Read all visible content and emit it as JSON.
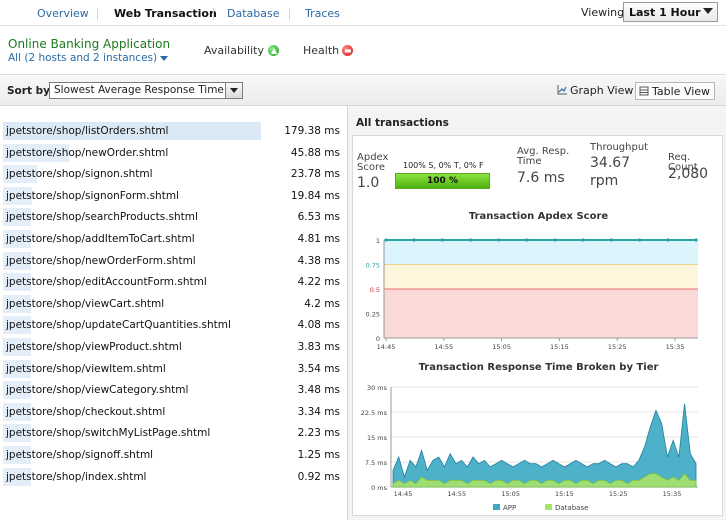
{
  "nav": {
    "tabs": [
      {
        "label": "Overview",
        "active": false
      },
      {
        "label": "Web Transaction",
        "active": true
      },
      {
        "label": "Database",
        "active": false
      },
      {
        "label": "Traces",
        "active": false
      }
    ],
    "viewing_label": "Viewing",
    "viewing_value": "Last 1 Hour"
  },
  "app": {
    "name": "Online Banking Application",
    "subtitle": "All (2 hosts and 2 instances)",
    "availability_label": "Availability",
    "availability_status": "up-arrow-green",
    "health_label": "Health",
    "health_status": "critical-red"
  },
  "sort": {
    "label": "Sort by.",
    "selected": "Slowest Average Response Time"
  },
  "views": {
    "graph_label": "Graph View",
    "table_label": "Table View",
    "active": "table"
  },
  "transactions": [
    {
      "name": "jpetstore/shop/listOrders.shtml",
      "time": "179.38 ms",
      "ms": 179.38
    },
    {
      "name": "jpetstore/shop/newOrder.shtml",
      "time": "45.88 ms",
      "ms": 45.88
    },
    {
      "name": "jpetstore/shop/signon.shtml",
      "time": "23.78 ms",
      "ms": 23.78
    },
    {
      "name": "jpetstore/shop/signonForm.shtml",
      "time": "19.84 ms",
      "ms": 19.84
    },
    {
      "name": "jpetstore/shop/searchProducts.shtml",
      "time": "6.53 ms",
      "ms": 6.53
    },
    {
      "name": "jpetstore/shop/addItemToCart.shtml",
      "time": "4.81 ms",
      "ms": 4.81
    },
    {
      "name": "jpetstore/shop/newOrderForm.shtml",
      "time": "4.38 ms",
      "ms": 4.38
    },
    {
      "name": "jpetstore/shop/editAccountForm.shtml",
      "time": "4.22 ms",
      "ms": 4.22
    },
    {
      "name": "jpetstore/shop/viewCart.shtml",
      "time": "4.2 ms",
      "ms": 4.2
    },
    {
      "name": "jpetstore/shop/updateCartQuantities.shtml",
      "time": "4.08 ms",
      "ms": 4.08
    },
    {
      "name": "jpetstore/shop/viewProduct.shtml",
      "time": "3.83 ms",
      "ms": 3.83
    },
    {
      "name": "jpetstore/shop/viewItem.shtml",
      "time": "3.54 ms",
      "ms": 3.54
    },
    {
      "name": "jpetstore/shop/viewCategory.shtml",
      "time": "3.48 ms",
      "ms": 3.48
    },
    {
      "name": "jpetstore/shop/checkout.shtml",
      "time": "3.34 ms",
      "ms": 3.34
    },
    {
      "name": "jpetstore/shop/switchMyListPage.shtml",
      "time": "2.23 ms",
      "ms": 2.23
    },
    {
      "name": "jpetstore/shop/signoff.shtml",
      "time": "1.25 ms",
      "ms": 1.25
    },
    {
      "name": "jpetstore/shop/index.shtml",
      "time": "0.92 ms",
      "ms": 0.92
    }
  ],
  "summary": {
    "title": "All transactions",
    "apdex_label_1": "Apdex",
    "apdex_label_2": "Score",
    "apdex_value": "1.0",
    "apdex_breakdown": "100% S, 0% T, 0% F",
    "apdex_bar_text": "100 %",
    "apdex_fraction": 1.0,
    "resp_label_1": "Avg. Resp.",
    "resp_label_2": "Time",
    "resp_value": "7.6 ms",
    "throughput_label": "Throughput",
    "throughput_value": "34.67",
    "throughput_unit": "rpm",
    "count_label": "Req. Count",
    "count_value": "2,080"
  },
  "chart_data": [
    {
      "type": "line",
      "title": "Transaction Apdex Score",
      "x_ticks": [
        "14:45",
        "14:55",
        "15:05",
        "15:15",
        "15:25",
        "15:35"
      ],
      "y_ticks": [
        "0",
        "0.25",
        "0.5",
        "0.75",
        "1"
      ],
      "ylim": [
        0,
        1
      ],
      "zones": [
        {
          "from": 0,
          "to": 0.5,
          "color": "#fbd9d9"
        },
        {
          "from": 0.5,
          "to": 0.75,
          "color": "#fdf6dc"
        },
        {
          "from": 0.75,
          "to": 1,
          "color": "#dcf4fb"
        }
      ],
      "series": [
        {
          "color": "#2aa3a3",
          "x": [
            "14:45",
            "14:50",
            "14:55",
            "15:00",
            "15:05",
            "15:10",
            "15:15",
            "15:20",
            "15:25",
            "15:30",
            "15:35",
            "15:40"
          ],
          "values": [
            1,
            1,
            1,
            1,
            1,
            1,
            1,
            1,
            1,
            1,
            1,
            1
          ]
        }
      ]
    },
    {
      "type": "area",
      "title": "Transaction Response Time Broken by Tier",
      "x_ticks": [
        "14:45",
        "14:55",
        "15:05",
        "15:15",
        "15:25",
        "15:35"
      ],
      "y_ticks": [
        "0 ms",
        "7.5 ms",
        "15 ms",
        "22.5 ms",
        "30 ms"
      ],
      "ylim": [
        0,
        30
      ],
      "series": [
        {
          "name": "APP",
          "color": "#3aa9c4",
          "values": [
            5,
            9,
            3,
            8,
            6,
            11,
            5,
            8,
            9,
            6,
            10,
            7,
            8,
            6,
            9,
            7,
            8,
            6,
            7,
            8,
            7,
            6,
            7,
            8,
            7,
            7,
            6,
            7,
            8,
            7,
            6,
            7,
            8,
            7,
            6,
            7,
            7,
            8,
            7,
            6,
            7,
            7,
            6,
            8,
            12,
            18,
            23,
            19,
            9,
            14,
            9,
            25,
            10,
            7
          ]
        },
        {
          "name": "Database",
          "color": "#a8e26b",
          "values": [
            1,
            2,
            1,
            2,
            1,
            3,
            2,
            2,
            2,
            1,
            2,
            2,
            2,
            1,
            2,
            2,
            2,
            1,
            2,
            2,
            1,
            2,
            2,
            1,
            2,
            2,
            1,
            2,
            2,
            1,
            2,
            2,
            1,
            2,
            2,
            1,
            2,
            2,
            1,
            2,
            2,
            1,
            2,
            2,
            3,
            4,
            4,
            3,
            2,
            3,
            2,
            4,
            2,
            2
          ]
        }
      ]
    }
  ]
}
